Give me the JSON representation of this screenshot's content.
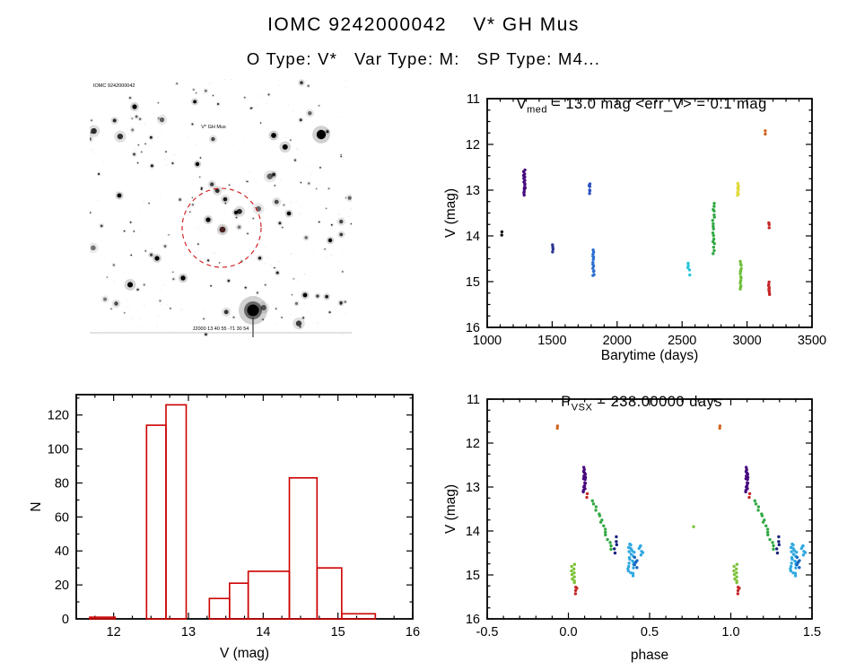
{
  "page": {
    "title": "IOMC 9242000042    V* GH Mus",
    "subtitle": "O Type: V*   Var Type: M:   SP Type: M4..."
  },
  "finder_chart": {
    "top_left_label": "IOMC 9242000042",
    "target_label": "V* GH Mus",
    "bottom_label": "J2000  13 40 55  -71 30 54",
    "circle_color": "#cc1111"
  },
  "chart_data": [
    {
      "id": "lightcurve",
      "type": "scatter",
      "title_main": "V",
      "title_sub": "med",
      "title_rest": " = 13.0 mag <err_V> = 0.1 mag",
      "xlabel": "Barytime (days)",
      "ylabel": "V (mag)",
      "xlim": [
        1000,
        3500
      ],
      "ylim_mag": [
        11,
        16
      ],
      "y_axis_inverted": true,
      "xticks": [
        1000,
        1500,
        2000,
        2500,
        3000,
        3500
      ],
      "xtick_labels": [
        "1000",
        "1500",
        "2000",
        "2500",
        "3000",
        "3500"
      ],
      "yticks": [
        11,
        12,
        13,
        14,
        15,
        16
      ],
      "ytick_labels": [
        "11",
        "12",
        "13",
        "14",
        "15",
        "16"
      ],
      "clusters": [
        {
          "x": 1110,
          "v1": 13.92,
          "v2": 13.98,
          "n": 2,
          "jx": 10,
          "c": "#111111"
        },
        {
          "x": 1286,
          "v1": 12.58,
          "v2": 13.1,
          "n": 16,
          "jx": 14,
          "c": "#46087e"
        },
        {
          "x": 1505,
          "v1": 14.18,
          "v2": 14.34,
          "n": 4,
          "jx": 8,
          "c": "#283593"
        },
        {
          "x": 1788,
          "v1": 12.86,
          "v2": 13.06,
          "n": 6,
          "jx": 10,
          "c": "#2a4fc0"
        },
        {
          "x": 1818,
          "v1": 14.3,
          "v2": 14.88,
          "n": 14,
          "jx": 10,
          "c": "#2d6fd2"
        },
        {
          "x": 2545,
          "v1": 14.6,
          "v2": 14.7,
          "n": 3,
          "jx": 8,
          "c": "#26c6da"
        },
        {
          "x": 2560,
          "v1": 14.76,
          "v2": 14.84,
          "n": 2,
          "jx": 6,
          "c": "#26c6da"
        },
        {
          "x": 2742,
          "v1": 13.28,
          "v2": 14.38,
          "n": 18,
          "jx": 14,
          "c": "#31a843"
        },
        {
          "x": 2930,
          "v1": 12.84,
          "v2": 13.12,
          "n": 8,
          "jx": 8,
          "c": "#e0d93a"
        },
        {
          "x": 2952,
          "v1": 14.55,
          "v2": 15.18,
          "n": 14,
          "jx": 10,
          "c": "#6fbe3a"
        },
        {
          "x": 3140,
          "v1": 11.72,
          "v2": 11.76,
          "n": 2,
          "jx": 6,
          "c": "#d0651f"
        },
        {
          "x": 3168,
          "v1": 13.7,
          "v2": 13.82,
          "n": 3,
          "jx": 6,
          "c": "#c62828"
        },
        {
          "x": 3170,
          "v1": 15.02,
          "v2": 15.28,
          "n": 8,
          "jx": 8,
          "c": "#c62828"
        }
      ]
    },
    {
      "id": "histogram",
      "type": "bar",
      "xlabel": "V (mag)",
      "ylabel": "N",
      "xlim": [
        11.5,
        16
      ],
      "ylim": [
        0,
        132
      ],
      "xticks": [
        12,
        13,
        14,
        15,
        16
      ],
      "xtick_labels": [
        "12",
        "13",
        "14",
        "15",
        "16"
      ],
      "yticks": [
        0,
        20,
        40,
        60,
        80,
        100,
        120
      ],
      "ytick_labels": [
        "0",
        "20",
        "40",
        "60",
        "80",
        "100",
        "120"
      ],
      "color": "#cc0000",
      "bars": [
        {
          "x1": 11.68,
          "x2": 12.02,
          "n": 1
        },
        {
          "x1": 12.44,
          "x2": 12.7,
          "n": 114
        },
        {
          "x1": 12.7,
          "x2": 12.97,
          "n": 126
        },
        {
          "x1": 13.28,
          "x2": 13.55,
          "n": 12
        },
        {
          "x1": 13.55,
          "x2": 13.8,
          "n": 21
        },
        {
          "x1": 13.8,
          "x2": 14.35,
          "n": 28
        },
        {
          "x1": 14.35,
          "x2": 14.72,
          "n": 83
        },
        {
          "x1": 14.72,
          "x2": 15.05,
          "n": 30
        },
        {
          "x1": 15.05,
          "x2": 15.5,
          "n": 3
        }
      ]
    },
    {
      "id": "phase",
      "type": "scatter",
      "title_main": "P",
      "title_sub": "VSX",
      "title_rest": " = 238.00000 days",
      "xlabel": "phase",
      "ylabel": "V (mag)",
      "xlim": [
        -0.5,
        1.5
      ],
      "ylim_mag": [
        11,
        16
      ],
      "y_axis_inverted": true,
      "repeat_offset": 1,
      "xticks": [
        -0.5,
        0,
        0.5,
        1,
        1.5
      ],
      "xtick_labels": [
        "-0.5",
        "0.0",
        "0.5",
        "1.0",
        "1.5"
      ],
      "yticks": [
        11,
        12,
        13,
        14,
        15,
        16
      ],
      "ytick_labels": [
        "11",
        "12",
        "13",
        "14",
        "15",
        "16"
      ],
      "clusters": [
        {
          "x": -0.07,
          "v1": 11.62,
          "v2": 11.66,
          "n": 2,
          "jx": 0.01,
          "c": "#d0651f"
        },
        {
          "x": 0.03,
          "v1": 14.78,
          "v2": 15.18,
          "n": 10,
          "jx": 0.025,
          "c": "#7ec23a"
        },
        {
          "x": 0.045,
          "v1": 15.26,
          "v2": 15.42,
          "n": 4,
          "jx": 0.015,
          "c": "#c62828"
        },
        {
          "x": 0.1,
          "v1": 12.56,
          "v2": 13.1,
          "n": 16,
          "jx": 0.02,
          "c": "#46087e"
        },
        {
          "x": 0.115,
          "v1": 13.16,
          "v2": 13.24,
          "n": 2,
          "jx": 0.01,
          "c": "#c62828"
        },
        {
          "x": 0.21,
          "v1": 13.3,
          "v2": 14.4,
          "n": 16,
          "jx": 0.11,
          "diag": true,
          "c": "#31a843"
        },
        {
          "x": 0.29,
          "v1": 14.15,
          "v2": 14.5,
          "n": 5,
          "jx": 0.015,
          "c": "#1a237e"
        },
        {
          "x": 0.385,
          "v1": 14.3,
          "v2": 15.0,
          "n": 22,
          "jx": 0.04,
          "c": "#2fa8e0"
        },
        {
          "x": 0.45,
          "v1": 14.32,
          "v2": 14.55,
          "n": 6,
          "jx": 0.035,
          "c": "#2fa8e0"
        },
        {
          "x": 0.42,
          "v1": 14.6,
          "v2": 14.85,
          "n": 5,
          "jx": 0.03,
          "c": "#1565c0"
        },
        {
          "x": 0.77,
          "v1": 13.88,
          "v2": 13.9,
          "n": 1,
          "jx": 0.01,
          "c": "#7ec23a"
        }
      ]
    }
  ]
}
